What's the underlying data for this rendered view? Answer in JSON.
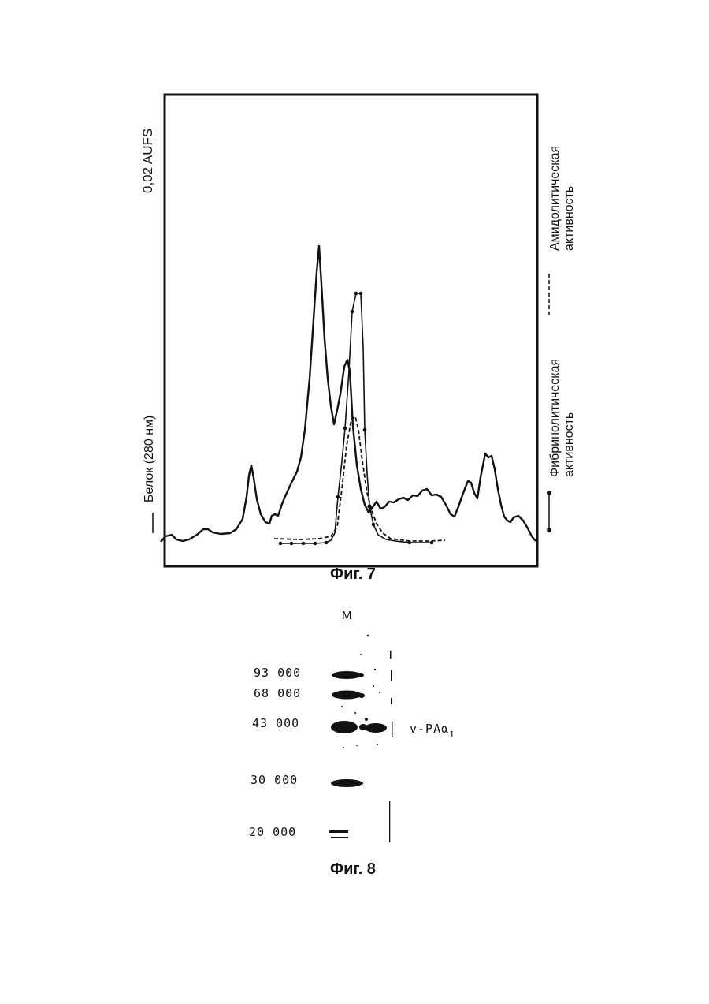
{
  "figure7": {
    "caption": "Фиг. 7",
    "scale_label": "0,02  AUFS",
    "legend": {
      "protein": "Белок (280 нм)",
      "fibrinolytic_line1": "Фибринолитическая",
      "fibrinolytic_line2": "активность",
      "amidolytic_line1": "Амидолитическая",
      "amidolytic_line2": "активность"
    },
    "chart_data": {
      "type": "line",
      "series": [
        {
          "name": "Белок (280 нм)",
          "style": "solid"
        },
        {
          "name": "Фибринолитическая активность",
          "style": "solid-dots"
        },
        {
          "name": "Амидолитическая активность",
          "style": "dashed"
        }
      ],
      "grid": false
    }
  },
  "figure8": {
    "caption": "Фиг. 8",
    "lane_label": "M",
    "markers": [
      "93  000",
      "68  000",
      "43  000",
      "30  000",
      "20  000"
    ],
    "band_label": "v-PAα",
    "band_subscript": "1"
  },
  "colors": {
    "ink": "#111111",
    "paper": "#ffffff"
  }
}
